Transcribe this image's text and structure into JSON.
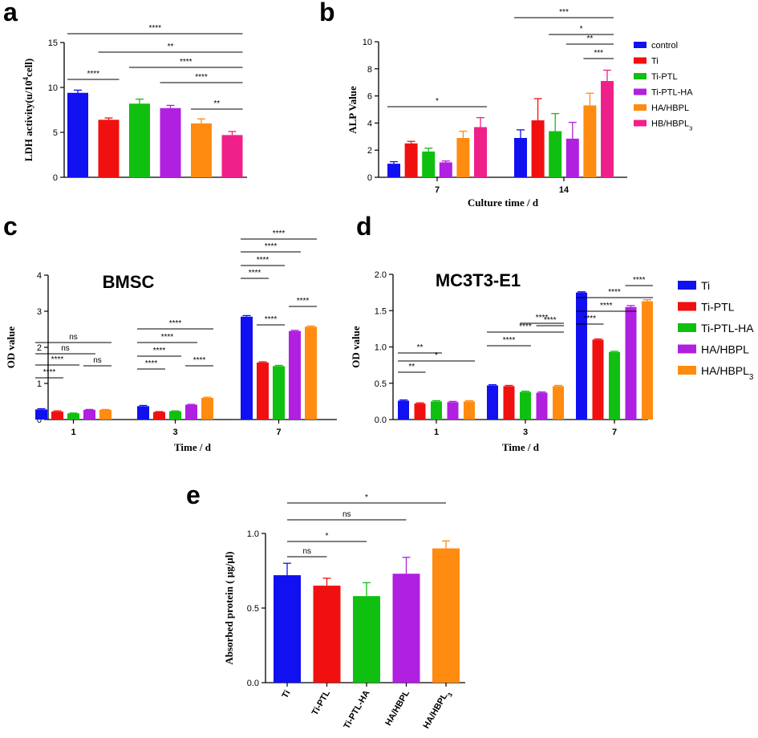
{
  "colors": {
    "blue": "#1010f0",
    "red": "#f01010",
    "green": "#10c010",
    "purple": "#b020e0",
    "orange": "#ff8c10",
    "pink": "#f0208a"
  },
  "chart_data": [
    {
      "id": "a",
      "letter": "a",
      "type": "bar",
      "ylabel": "LDH activity(u/10",
      "ylabel_sup": "4",
      "ylabel_tail": "cell)",
      "ylim": [
        0,
        15
      ],
      "yticks": [
        "0",
        "5",
        "10",
        "15"
      ],
      "series": [
        {
          "name": "control",
          "color": "blue",
          "value": 9.4,
          "err": 0.3
        },
        {
          "name": "Ti",
          "color": "red",
          "value": 6.4,
          "err": 0.2
        },
        {
          "name": "Ti-PTL",
          "color": "green",
          "value": 8.2,
          "err": 0.5
        },
        {
          "name": "Ti-PTL-HA",
          "color": "purple",
          "value": 7.7,
          "err": 0.3
        },
        {
          "name": "HA/HBPL",
          "color": "orange",
          "value": 6.0,
          "err": 0.5
        },
        {
          "name": "HB/HBPL3",
          "color": "pink",
          "value": 4.7,
          "err": 0.4
        }
      ],
      "sig": [
        {
          "from": 0,
          "to": 5,
          "label": "****"
        },
        {
          "from": 1,
          "to": 5,
          "label": "**"
        },
        {
          "from": 2,
          "to": 5,
          "label": "****"
        },
        {
          "from": 3,
          "to": 5,
          "label": "****"
        },
        {
          "from": 4,
          "to": 5,
          "label": "**"
        },
        {
          "from": 0,
          "to": 1,
          "label": "****"
        }
      ]
    },
    {
      "id": "b",
      "letter": "b",
      "type": "bar",
      "xlabel": "Culture time / d",
      "ylabel": "ALP Value",
      "ylim": [
        0,
        10
      ],
      "yticks": [
        "0",
        "2",
        "4",
        "6",
        "8",
        "10"
      ],
      "categories": [
        "7",
        "14"
      ],
      "series": [
        {
          "name": "control",
          "color": "blue",
          "values": [
            1.0,
            2.9
          ],
          "err": [
            0.15,
            0.6
          ]
        },
        {
          "name": "Ti",
          "color": "red",
          "values": [
            2.5,
            4.2
          ],
          "err": [
            0.15,
            1.6
          ]
        },
        {
          "name": "Ti-PTL",
          "color": "green",
          "values": [
            1.9,
            3.4
          ],
          "err": [
            0.25,
            1.3
          ]
        },
        {
          "name": "Ti-PTL-HA",
          "color": "purple",
          "values": [
            1.1,
            2.85
          ],
          "err": [
            0.1,
            1.2
          ]
        },
        {
          "name": "HA/HBPL",
          "color": "orange",
          "values": [
            2.9,
            5.3
          ],
          "err": [
            0.5,
            0.9
          ]
        },
        {
          "name": "HB/HBPL",
          "sub": "3",
          "color": "pink",
          "values": [
            3.7,
            7.1
          ],
          "err": [
            0.7,
            0.8
          ]
        }
      ],
      "sig": [
        {
          "cat": 0,
          "from": 0,
          "to": 5,
          "label": "*"
        },
        {
          "cat": 1,
          "from": 0,
          "to": 5,
          "label": "***"
        },
        {
          "cat": 1,
          "from": 2,
          "to": 5,
          "label": "*"
        },
        {
          "cat": 1,
          "from": 3,
          "to": 5,
          "label": "**"
        },
        {
          "cat": 1,
          "from": 4,
          "to": 5,
          "label": "***"
        }
      ],
      "legend": [
        "control",
        "Ti",
        "Ti-PTL",
        "Ti-PTL-HA",
        "HA/HBPL",
        "HB/HBPL3"
      ]
    },
    {
      "id": "c",
      "letter": "c",
      "type": "bar",
      "title": "BMSC",
      "xlabel": "Time / d",
      "ylabel": "OD value",
      "ylim": [
        0,
        4
      ],
      "yticks": [
        "0",
        "1",
        "2",
        "3",
        "4"
      ],
      "categories": [
        "1",
        "3",
        "7"
      ],
      "series": [
        {
          "name": "Ti",
          "color": "blue",
          "values": [
            0.28,
            0.37,
            2.85
          ],
          "err": [
            0.02,
            0.02,
            0.03
          ]
        },
        {
          "name": "Ti-PTL",
          "color": "red",
          "values": [
            0.22,
            0.21,
            1.58
          ],
          "err": [
            0.02,
            0.01,
            0.02
          ]
        },
        {
          "name": "Ti-PTL-HA",
          "color": "green",
          "values": [
            0.17,
            0.23,
            1.48
          ],
          "err": [
            0.01,
            0.01,
            0.02
          ]
        },
        {
          "name": "HA/HBPL",
          "color": "purple",
          "values": [
            0.27,
            0.41,
            2.45
          ],
          "err": [
            0.01,
            0.01,
            0.02
          ]
        },
        {
          "name": "HA/HBPL3",
          "color": "orange",
          "values": [
            0.27,
            0.6,
            2.57
          ],
          "err": [
            0.01,
            0.02,
            0.02
          ]
        }
      ],
      "sig": [
        {
          "cat": 0,
          "from": 0,
          "to": 1,
          "label": "****"
        },
        {
          "cat": 0,
          "from": 0,
          "to": 2,
          "label": "****"
        },
        {
          "cat": 0,
          "from": 0,
          "to": 3,
          "label": "ns"
        },
        {
          "cat": 0,
          "from": 0,
          "to": 4,
          "label": "ns"
        },
        {
          "cat": 0,
          "from": 3,
          "to": 4,
          "label": "ns"
        },
        {
          "cat": 1,
          "from": 0,
          "to": 1,
          "label": "****"
        },
        {
          "cat": 1,
          "from": 0,
          "to": 2,
          "label": "****"
        },
        {
          "cat": 1,
          "from": 0,
          "to": 3,
          "label": "****"
        },
        {
          "cat": 1,
          "from": 0,
          "to": 4,
          "label": "****"
        },
        {
          "cat": 1,
          "from": 3,
          "to": 4,
          "label": "****"
        },
        {
          "cat": 2,
          "from": 0,
          "to": 1,
          "label": "****"
        },
        {
          "cat": 2,
          "from": 0,
          "to": 2,
          "label": "****"
        },
        {
          "cat": 2,
          "from": 0,
          "to": 3,
          "label": "****"
        },
        {
          "cat": 2,
          "from": 0,
          "to": 4,
          "label": "****"
        },
        {
          "cat": 2,
          "from": 1,
          "to": 2,
          "label": "****"
        },
        {
          "cat": 2,
          "from": 3,
          "to": 4,
          "label": "****"
        }
      ]
    },
    {
      "id": "d",
      "letter": "d",
      "type": "bar",
      "title": "MC3T3-E1",
      "xlabel": "Time / d",
      "ylabel": "OD value",
      "ylim": [
        0,
        2.0
      ],
      "yticks": [
        "0.0",
        "0.5",
        "1.0",
        "1.5",
        "2.0"
      ],
      "categories": [
        "1",
        "3",
        "7"
      ],
      "series": [
        {
          "name": "Ti",
          "color": "blue",
          "values": [
            0.26,
            0.47,
            1.75
          ],
          "err": [
            0.01,
            0.01,
            0.01
          ]
        },
        {
          "name": "Ti-PTL",
          "color": "red",
          "values": [
            0.22,
            0.46,
            1.1
          ],
          "err": [
            0.01,
            0.01,
            0.01
          ]
        },
        {
          "name": "Ti-PTL-HA",
          "color": "green",
          "values": [
            0.25,
            0.38,
            0.93
          ],
          "err": [
            0.01,
            0.01,
            0.01
          ]
        },
        {
          "name": "HA/HBPL",
          "color": "purple",
          "values": [
            0.24,
            0.37,
            1.55
          ],
          "err": [
            0.01,
            0.01,
            0.02
          ]
        },
        {
          "name": "HA/HBPL",
          "sub": "3",
          "color": "orange",
          "values": [
            0.25,
            0.46,
            1.63
          ],
          "err": [
            0.01,
            0.01,
            0.02
          ]
        }
      ],
      "sig": [
        {
          "cat": 0,
          "from": 0,
          "to": 1,
          "label": "**"
        },
        {
          "cat": 0,
          "from": 0,
          "to": 2,
          "label": "**"
        },
        {
          "cat": 0,
          "from": 0,
          "to": 4,
          "label": "*"
        },
        {
          "cat": 1,
          "from": 0,
          "to": 2,
          "label": "****"
        },
        {
          "cat": 1,
          "from": 0,
          "to": 4,
          "label": "****"
        },
        {
          "cat": 1,
          "from": 2,
          "to": 4,
          "label": "****"
        },
        {
          "cat": 1,
          "from": 3,
          "to": 4,
          "label": "****"
        },
        {
          "cat": 2,
          "from": 0,
          "to": 1,
          "label": "****"
        },
        {
          "cat": 2,
          "from": 0,
          "to": 3,
          "label": "****"
        },
        {
          "cat": 2,
          "from": 0,
          "to": 4,
          "label": "****"
        },
        {
          "cat": 2,
          "from": 3,
          "to": 4,
          "label": "****"
        }
      ],
      "legend": [
        "Ti",
        "Ti-PTL",
        "Ti-PTL-HA",
        "HA/HBPL",
        "HA/HBPL3"
      ]
    },
    {
      "id": "e",
      "letter": "e",
      "type": "bar",
      "ylabel": "Absorbed protein ( μg/μl)",
      "ylim": [
        0,
        1.0
      ],
      "yticks": [
        "0.0",
        "0.5",
        "1.0"
      ],
      "series": [
        {
          "name": "Ti",
          "color": "blue",
          "value": 0.72,
          "err": 0.08
        },
        {
          "name": "Ti-PTL",
          "color": "red",
          "value": 0.65,
          "err": 0.05
        },
        {
          "name": "Ti-PTL-HA",
          "color": "green",
          "value": 0.58,
          "err": 0.09
        },
        {
          "name": "HA/HBPL",
          "color": "purple",
          "value": 0.73,
          "err": 0.11
        },
        {
          "name": "HA/HBPL",
          "sub": "3",
          "color": "orange",
          "value": 0.9,
          "err": 0.05
        }
      ],
      "sig": [
        {
          "from": 0,
          "to": 1,
          "label": "ns"
        },
        {
          "from": 0,
          "to": 2,
          "label": "*"
        },
        {
          "from": 0,
          "to": 3,
          "label": "ns"
        },
        {
          "from": 0,
          "to": 4,
          "label": "*"
        }
      ]
    }
  ]
}
